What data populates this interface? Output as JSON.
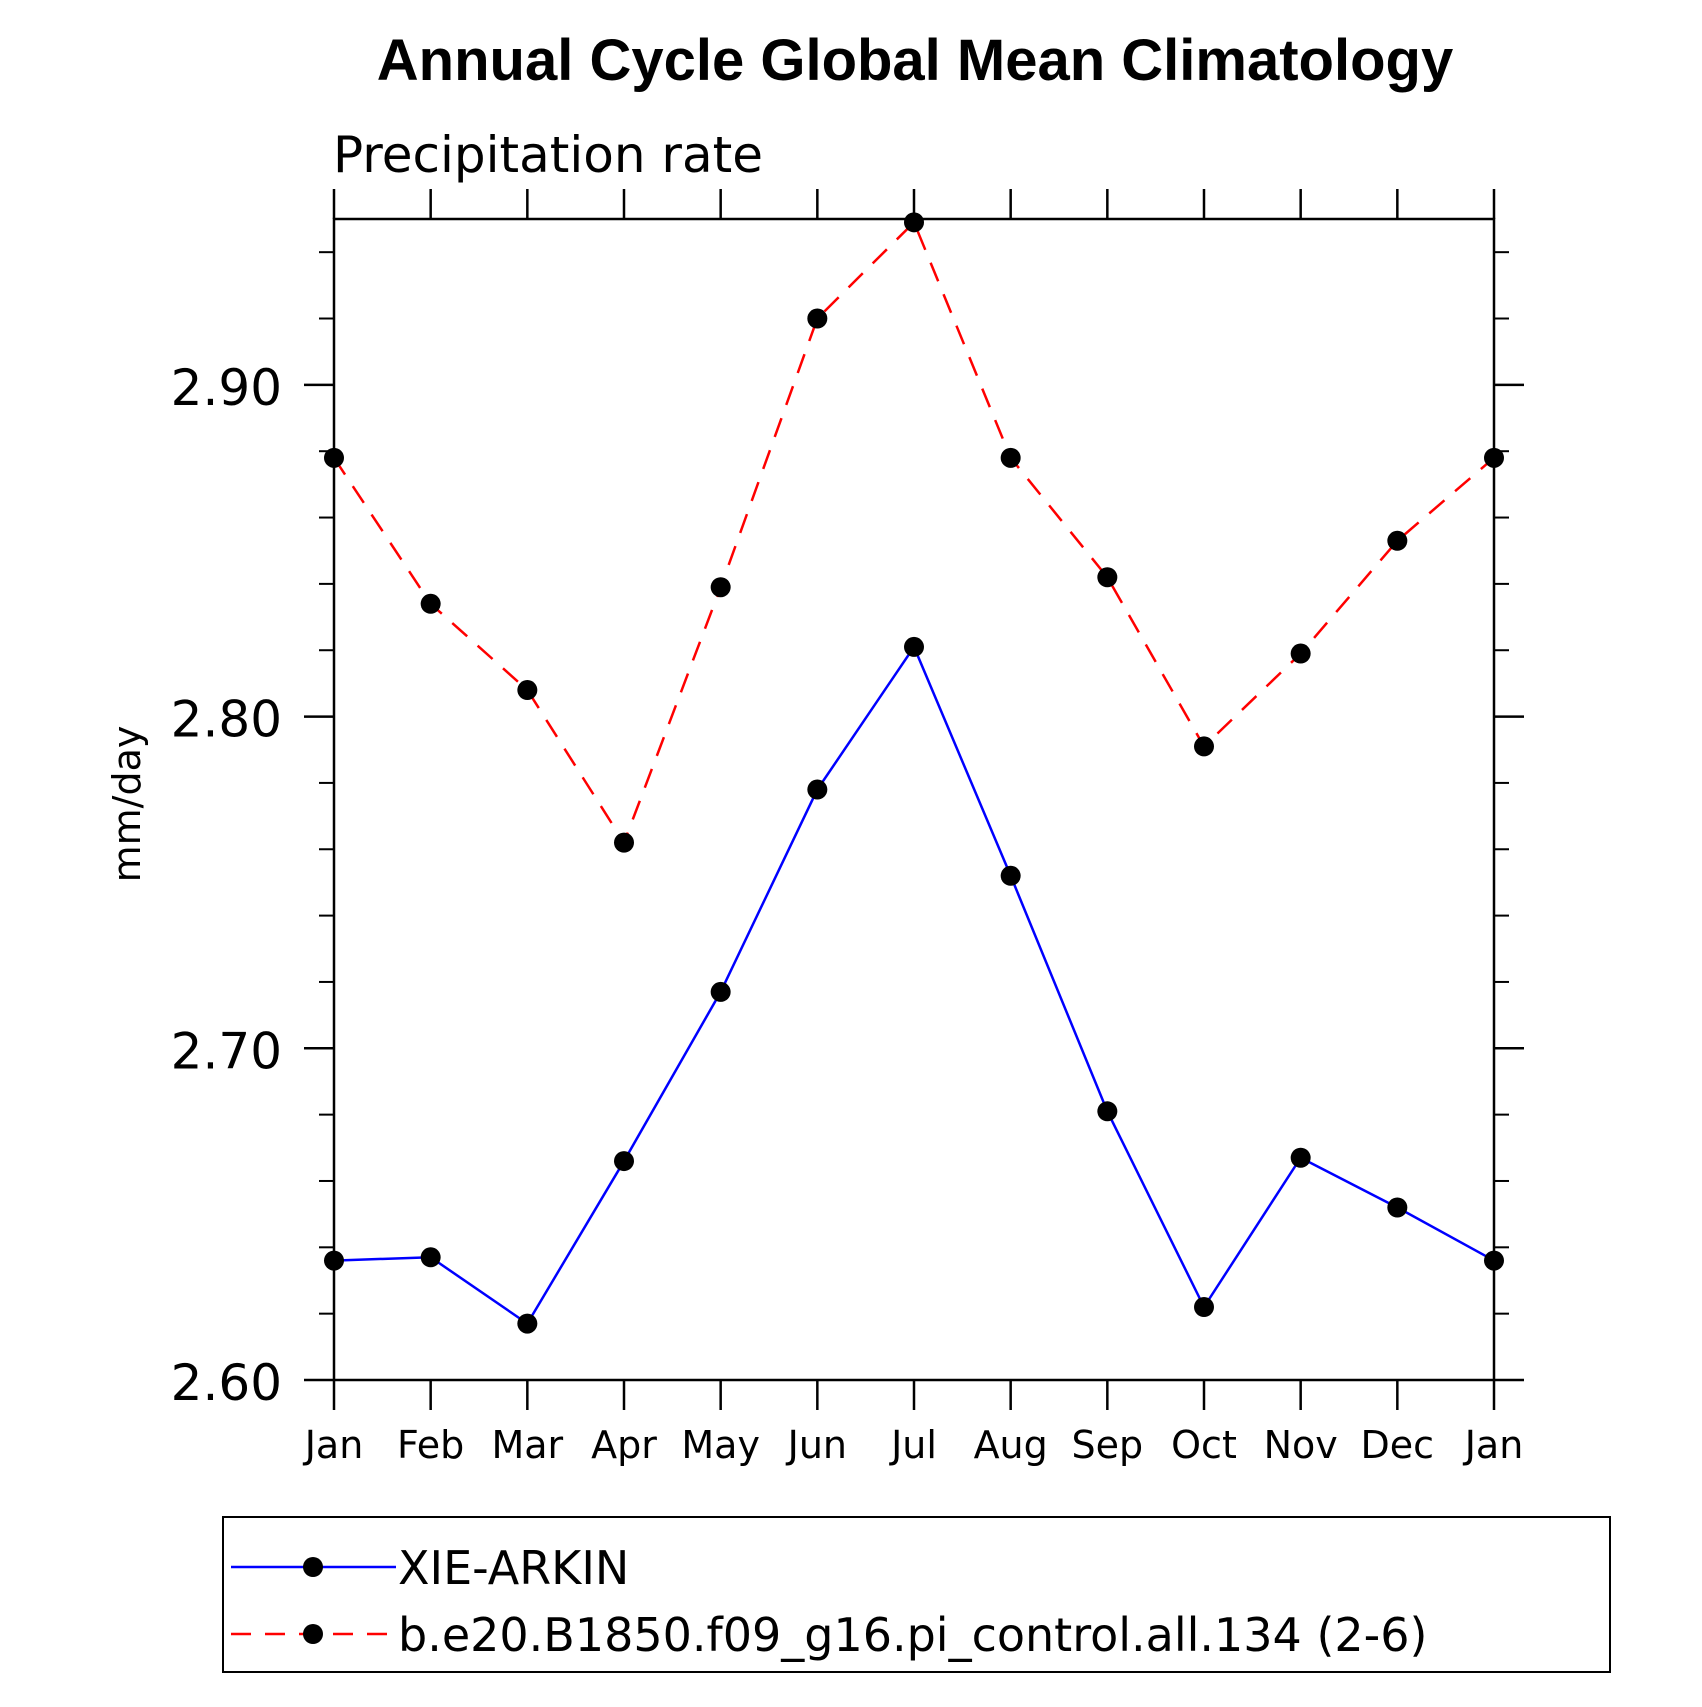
{
  "chart_data": {
    "type": "line",
    "title": "Annual Cycle Global Mean Climatology",
    "subtitle": "Precipitation rate",
    "ylabel": "mm/day",
    "xlabel": "",
    "categories": [
      "Jan",
      "Feb",
      "Mar",
      "Apr",
      "May",
      "Jun",
      "Jul",
      "Aug",
      "Sep",
      "Oct",
      "Nov",
      "Dec",
      "Jan"
    ],
    "ylim": [
      2.6,
      2.95
    ],
    "yticks": [
      "2.60",
      "2.70",
      "2.80",
      "2.90"
    ],
    "grid": false,
    "legend_position": "bottom",
    "series": [
      {
        "name": "XIE-ARKIN",
        "color": "#0000ff",
        "line_style": "solid",
        "marker": "filled-circle",
        "values": [
          2.636,
          2.637,
          2.617,
          2.666,
          2.717,
          2.778,
          2.821,
          2.752,
          2.681,
          2.622,
          2.667,
          2.652,
          2.636
        ]
      },
      {
        "name": "b.e20.B1850.f09_g16.pi_control.all.134 (2-6)",
        "color": "#ff0000",
        "line_style": "dashed",
        "marker": "filled-circle",
        "values": [
          2.878,
          2.834,
          2.808,
          2.762,
          2.839,
          2.92,
          2.949,
          2.878,
          2.842,
          2.791,
          2.819,
          2.853,
          2.878
        ]
      }
    ]
  }
}
